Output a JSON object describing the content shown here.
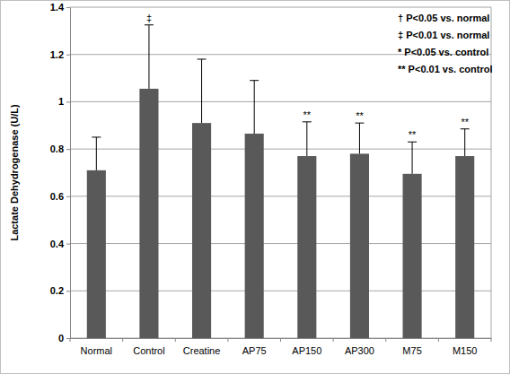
{
  "chart_data": {
    "type": "bar",
    "y_label": "Lactate Dehydrogenase (U/L)",
    "categories": [
      "Normal",
      "Control",
      "Creatine",
      "AP75",
      "AP150",
      "AP300",
      "M75",
      "M150"
    ],
    "values": [
      0.71,
      1.055,
      0.91,
      0.865,
      0.77,
      0.78,
      0.695,
      0.77
    ],
    "error": [
      0.14,
      0.27,
      0.27,
      0.225,
      0.145,
      0.13,
      0.135,
      0.115
    ],
    "significance": [
      null,
      "‡",
      null,
      null,
      "**",
      "**",
      "**",
      "**"
    ],
    "annotations": [
      "† P<0.05 vs. normal",
      "‡ P<0.01 vs. normal",
      "* P<0.05 vs. control",
      "** P<0.01 vs. control"
    ],
    "color": "#595959",
    "ylim": [
      0,
      1.4
    ],
    "yticks": [
      0,
      0.2,
      0.4,
      0.6,
      0.8,
      1,
      1.2,
      1.4
    ],
    "grid": true
  }
}
